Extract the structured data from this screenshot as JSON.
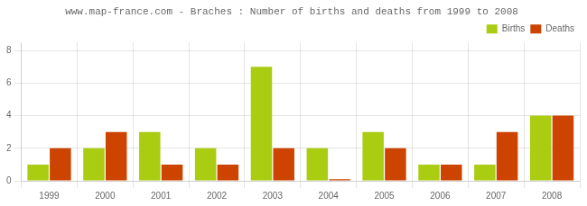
{
  "chart_data": {
    "type": "bar",
    "title": "www.map-france.com - Braches : Number of births and deaths from 1999 to 2008",
    "categories": [
      "1999",
      "2000",
      "2001",
      "2002",
      "2003",
      "2004",
      "2005",
      "2006",
      "2007",
      "2008"
    ],
    "series": [
      {
        "name": "Births",
        "color": "#aacc11",
        "values": [
          1,
          2,
          3,
          2,
          7,
          2,
          3,
          1,
          1,
          4
        ]
      },
      {
        "name": "Deaths",
        "color": "#cc4400",
        "values": [
          2,
          3,
          1,
          1,
          2,
          0.1,
          2,
          1,
          3,
          4
        ]
      }
    ],
    "ylim": [
      0,
      8.5
    ],
    "yticks": [
      0,
      2,
      4,
      6,
      8
    ],
    "grid": true,
    "legend": "upper right"
  }
}
